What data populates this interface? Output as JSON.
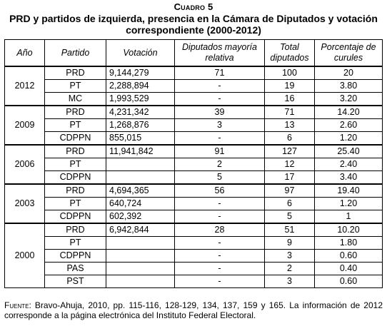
{
  "header": {
    "cuadro": "Cuadro 5",
    "title_line1": "PRD y partidos de izquierda, presencia en la Cámara de Diputados y votación",
    "title_line2": "correspondiente (2000-2012)"
  },
  "columns": {
    "anio": "Año",
    "partido": "Partido",
    "votacion": "Votación",
    "mayoria": "Diputados mayoría relativa",
    "total": "Total diputados",
    "porcentaje": "Porcentaje de curules"
  },
  "groups": [
    {
      "year": "2012",
      "rows": [
        {
          "partido": "PRD",
          "votacion": "9,144,279",
          "mayoria": "71",
          "total": "100",
          "porcentaje": "20"
        },
        {
          "partido": "PT",
          "votacion": "2,288,894",
          "mayoria": "-",
          "total": "19",
          "porcentaje": "3.80"
        },
        {
          "partido": "MC",
          "votacion": "1,993,529",
          "mayoria": "-",
          "total": "16",
          "porcentaje": "3.20"
        }
      ]
    },
    {
      "year": "2009",
      "rows": [
        {
          "partido": "PRD",
          "votacion": "4,231,342",
          "mayoria": "39",
          "total": "71",
          "porcentaje": "14.20"
        },
        {
          "partido": "PT",
          "votacion": "1,268,876",
          "mayoria": "3",
          "total": "13",
          "porcentaje": "2.60"
        },
        {
          "partido": "CDPPN",
          "votacion": "855,015",
          "mayoria": "-",
          "total": "6",
          "porcentaje": "1.20"
        }
      ]
    },
    {
      "year": "2006",
      "rows": [
        {
          "partido": "PRD",
          "votacion": "11,941,842",
          "mayoria": "91",
          "total": "127",
          "porcentaje": "25.40"
        },
        {
          "partido": "PT",
          "votacion": "",
          "mayoria": "2",
          "total": "12",
          "porcentaje": "2.40"
        },
        {
          "partido": "CDPPN",
          "votacion": "",
          "mayoria": "5",
          "total": "17",
          "porcentaje": "3.40"
        }
      ]
    },
    {
      "year": "2003",
      "rows": [
        {
          "partido": "PRD",
          "votacion": "4,694,365",
          "mayoria": "56",
          "total": "97",
          "porcentaje": "19.40"
        },
        {
          "partido": "PT",
          "votacion": "640,724",
          "mayoria": "-",
          "total": "6",
          "porcentaje": "1.20"
        },
        {
          "partido": "CDPPN",
          "votacion": "602,392",
          "mayoria": "-",
          "total": "5",
          "porcentaje": "1"
        }
      ]
    },
    {
      "year": "2000",
      "rows": [
        {
          "partido": "PRD",
          "votacion": "6,942,844",
          "mayoria": "28",
          "total": "51",
          "porcentaje": "10.20"
        },
        {
          "partido": "PT",
          "votacion": "",
          "mayoria": "-",
          "total": "9",
          "porcentaje": "1.80"
        },
        {
          "partido": "CDPPN",
          "votacion": "",
          "mayoria": "-",
          "total": "3",
          "porcentaje": "0.60"
        },
        {
          "partido": "PAS",
          "votacion": "",
          "mayoria": "-",
          "total": "2",
          "porcentaje": "0.40"
        },
        {
          "partido": "PST",
          "votacion": "",
          "mayoria": "-",
          "total": "3",
          "porcentaje": "0.60"
        }
      ]
    }
  ],
  "footer": {
    "label": "Fuente:",
    "text": " Bravo-Ahuja, 2010, pp. 115-116, 128-129, 134, 137, 159 y 165. La información de 2012 corresponde a la página electrónica del Instituto Federal Electoral."
  }
}
